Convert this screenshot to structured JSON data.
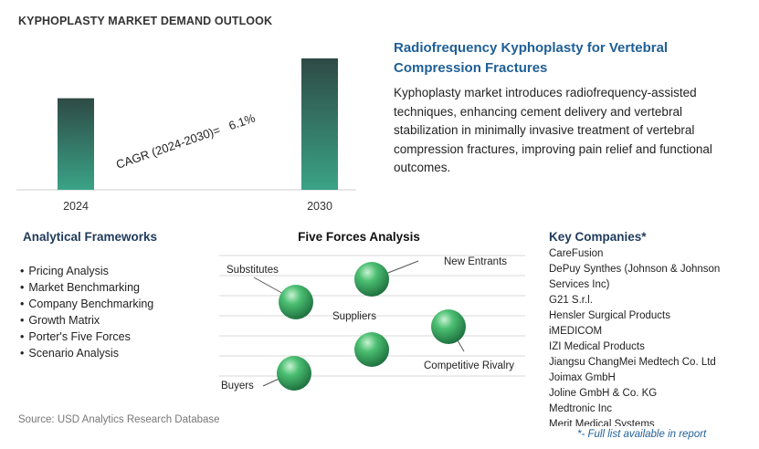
{
  "page_title": "KYPHOPLASTY MARKET DEMAND OUTLOOK",
  "chart_data": {
    "type": "bar",
    "categories": [
      "2024",
      "2030"
    ],
    "values": [
      100,
      143.5
    ],
    "annotation": "CAGR (2024-2030)=   6.1%",
    "colors": {
      "bar_top": "#2e4a45",
      "bar_bottom": "#3aa386"
    }
  },
  "headline": "Radiofrequency Kyphoplasty for Vertebral Compression Fractures",
  "description": "Kyphoplasty market introduces radiofrequency-assisted techniques, enhancing cement delivery and vertebral stabilization in minimally invasive treatment of vertebral compression fractures, improving pain relief and functional outcomes.",
  "analytical_frameworks": {
    "title": "Analytical Frameworks",
    "items": [
      "Pricing Analysis",
      "Market Benchmarking",
      "Company Benchmarking",
      "Growth Matrix",
      "Porter's Five Forces",
      "Scenario Analysis"
    ]
  },
  "five_forces": {
    "title": "Five Forces Analysis",
    "labels": {
      "substitutes": "Substitutes",
      "new_entrants": "New Entrants",
      "suppliers": "Suppliers",
      "competitive_rivalry": "Competitive Rivalry",
      "buyers": "Buyers"
    },
    "sphere_color": "#2e9a56"
  },
  "key_companies": {
    "title": "Key Companies*",
    "items": [
      "CareFusion",
      "DePuy Synthes (Johnson & Johnson Services Inc)",
      "G21 S.r.l.",
      "Hensler Surgical Products",
      "iMEDICOM",
      "IZI Medical Products",
      "Jiangsu ChangMei Medtech Co. Ltd",
      "Joimax GmbH",
      "Joline GmbH & Co. KG",
      "Medtronic Inc",
      "Merit Medical Systems"
    ],
    "footnote": "*- Full list available in report"
  },
  "source": "Source: USD Analytics Research Database"
}
